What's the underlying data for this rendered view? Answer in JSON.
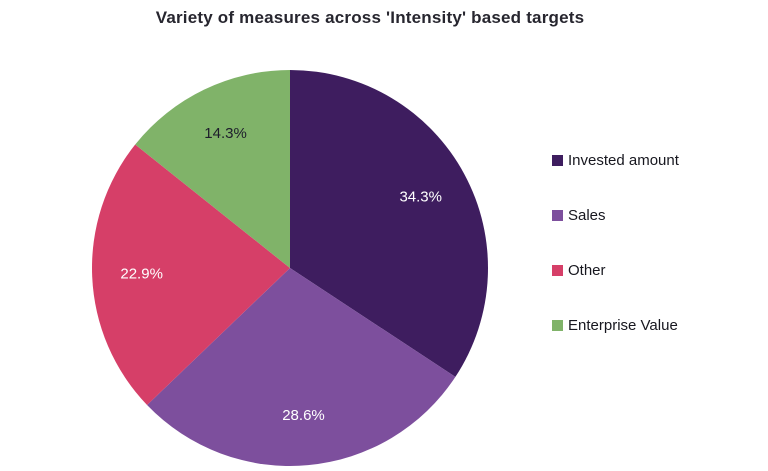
{
  "title": "Variety of measures across 'Intensity' based targets",
  "chart_data": {
    "type": "pie",
    "title": "Variety of measures across 'Intensity' based targets",
    "legend_position": "right",
    "start_angle_deg": -90,
    "direction": "clockwise",
    "slices": [
      {
        "label": "Invested amount",
        "value": 34.3,
        "display": "34.3%",
        "color": "#3e1d5f",
        "label_color": "#ffffff"
      },
      {
        "label": "Sales",
        "value": 28.6,
        "display": "28.6%",
        "color": "#7d4f9d",
        "label_color": "#ffffff"
      },
      {
        "label": "Other",
        "value": 22.9,
        "display": "22.9%",
        "color": "#d63f68",
        "label_color": "#ffffff"
      },
      {
        "label": "Enterprise Value",
        "value": 14.3,
        "display": "14.3%",
        "color": "#80b369",
        "label_color": "#1d1d2b"
      }
    ]
  }
}
